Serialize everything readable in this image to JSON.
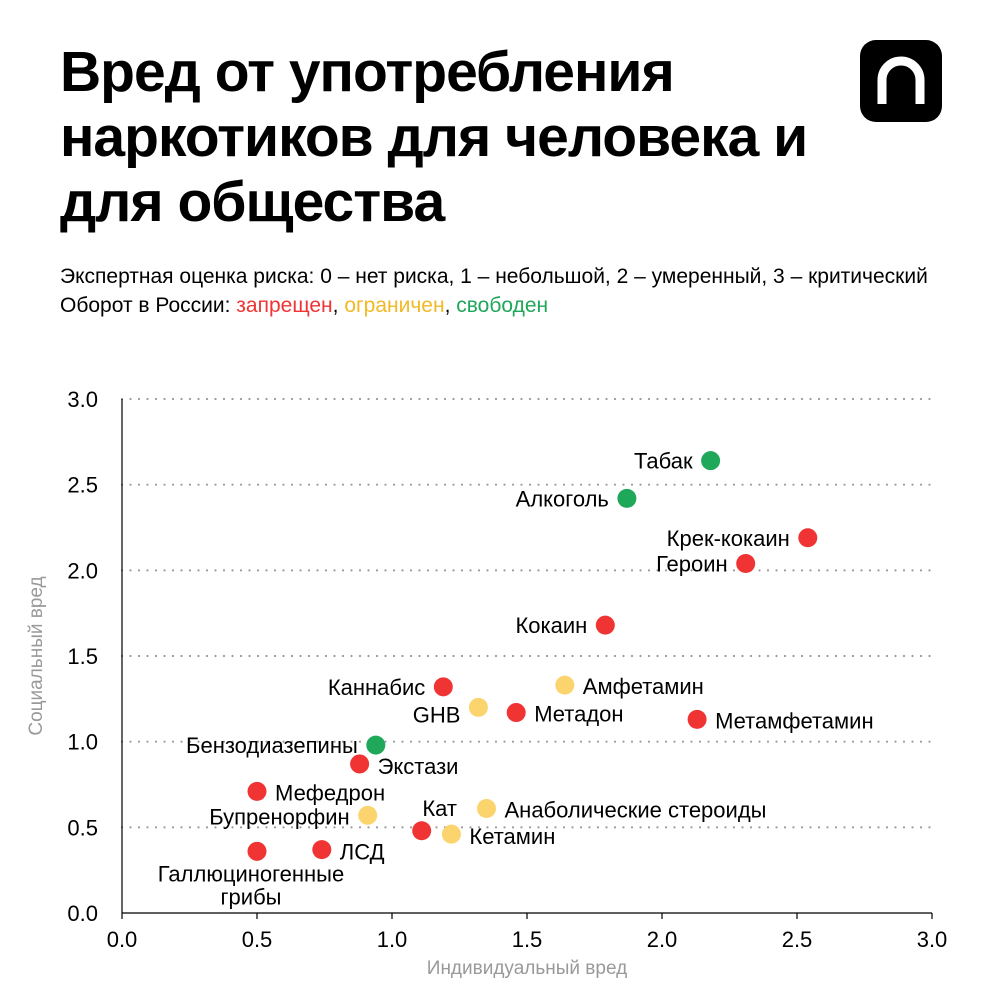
{
  "header": {
    "title": "Вред от употребления наркотиков для человека и для общества",
    "subtitle_line1": "Экспертная оценка риска: 0 – нет риска, 1 – небольшой, 2 – умеренный, 3 – критический",
    "subtitle_line2_prefix": "Оборот в России: ",
    "status_banned": "запрещен",
    "status_restricted": "ограничен",
    "status_free": "свободен",
    "sep": ", ",
    "logo_icon": "n-logo-icon"
  },
  "colors": {
    "banned": "#f03434",
    "restricted": "#fcd46e",
    "free": "#1fa75a",
    "grid": "#999999"
  },
  "chart_data": {
    "type": "scatter",
    "xlabel": "Индивидуальный вред",
    "ylabel": "Социальный вред",
    "xlim": [
      0,
      3
    ],
    "ylim": [
      0,
      3
    ],
    "xticks": [
      "0.0",
      "0.5",
      "1.0",
      "1.5",
      "2.0",
      "2.5",
      "3.0"
    ],
    "yticks": [
      "0.0",
      "0.5",
      "1.0",
      "1.5",
      "2.0",
      "2.5",
      "3.0"
    ],
    "grid": "horizontal dotted",
    "points": [
      {
        "label": "Табак",
        "x": 2.18,
        "y": 2.64,
        "status": "free"
      },
      {
        "label": "Алкоголь",
        "x": 1.87,
        "y": 2.42,
        "status": "free"
      },
      {
        "label": "Крек-кокаин",
        "x": 2.54,
        "y": 2.19,
        "status": "banned"
      },
      {
        "label": "Героин",
        "x": 2.31,
        "y": 2.04,
        "status": "banned"
      },
      {
        "label": "Кокаин",
        "x": 1.79,
        "y": 1.68,
        "status": "banned"
      },
      {
        "label": "Каннабис",
        "x": 1.19,
        "y": 1.32,
        "status": "banned"
      },
      {
        "label": "Амфетамин",
        "x": 1.64,
        "y": 1.33,
        "status": "restricted"
      },
      {
        "label": "GHB",
        "x": 1.32,
        "y": 1.2,
        "status": "restricted"
      },
      {
        "label": "Метадон",
        "x": 1.46,
        "y": 1.17,
        "status": "banned"
      },
      {
        "label": "Метамфетамин",
        "x": 2.13,
        "y": 1.13,
        "status": "banned"
      },
      {
        "label": "Бензодиазепины",
        "x": 0.94,
        "y": 0.98,
        "status": "free"
      },
      {
        "label": "Экстази",
        "x": 0.88,
        "y": 0.87,
        "status": "banned"
      },
      {
        "label": "Мефедрон",
        "x": 0.5,
        "y": 0.71,
        "status": "banned"
      },
      {
        "label": "Бупренорфин",
        "x": 0.91,
        "y": 0.57,
        "status": "restricted"
      },
      {
        "label": "Кат",
        "x": 1.11,
        "y": 0.48,
        "status": "banned"
      },
      {
        "label": "Анаболические стероиды",
        "x": 1.35,
        "y": 0.61,
        "status": "restricted"
      },
      {
        "label": "Кетамин",
        "x": 1.22,
        "y": 0.46,
        "status": "restricted"
      },
      {
        "label": "ЛСД",
        "x": 0.74,
        "y": 0.37,
        "status": "banned"
      },
      {
        "label": "Галлюциногенные грибы",
        "x": 0.5,
        "y": 0.36,
        "status": "banned"
      }
    ]
  }
}
